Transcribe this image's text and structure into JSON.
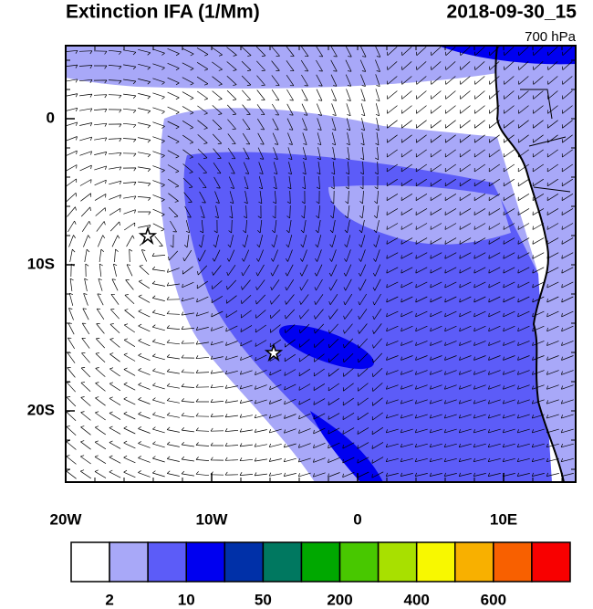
{
  "title": "Extinction IFA (1/Mm)",
  "datetime": "2018-09-30_15",
  "level": "700 hPa",
  "x_axis": {
    "labels": [
      "20W",
      "10W",
      "0",
      "10E"
    ]
  },
  "y_axis": {
    "labels": [
      "0",
      "10S",
      "20S"
    ]
  },
  "colorbar": {
    "colors": [
      "#ffffff",
      "#a8a8f8",
      "#5c5cf8",
      "#0000f0",
      "#0030a8",
      "#007860",
      "#00a800",
      "#48c800",
      "#a8e000",
      "#f8f800",
      "#f8b000",
      "#f86000",
      "#f80000"
    ],
    "labels": [
      "2",
      "10",
      "50",
      "200",
      "400",
      "600"
    ]
  }
}
